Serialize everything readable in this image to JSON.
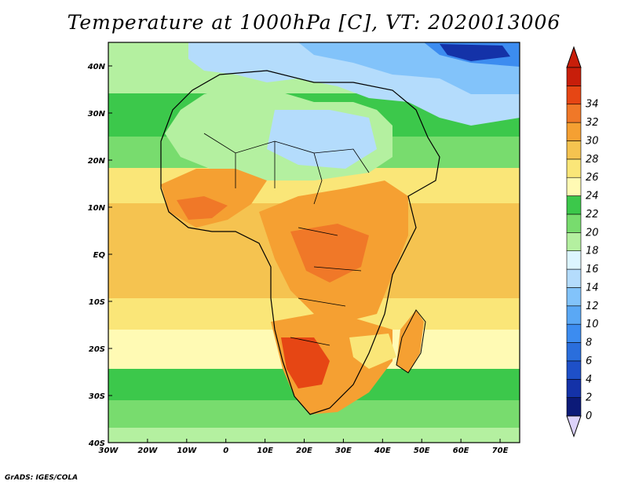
{
  "title": "Temperature at 1000hPa [C], VT: 2020013006",
  "credit": "GrADS: IGES/COLA",
  "map": {
    "lon_range": [
      -30,
      75
    ],
    "lat_range": [
      -40,
      45
    ],
    "lon_ticks": [
      "30W",
      "20W",
      "10W",
      "0",
      "10E",
      "20E",
      "30E",
      "40E",
      "50E",
      "60E",
      "70E"
    ],
    "lat_ticks": [
      "40N",
      "30N",
      "20N",
      "10N",
      "EQ",
      "10S",
      "20S",
      "30S",
      "40S"
    ],
    "variable": "temperature",
    "level": "1000hPa",
    "units": "C"
  },
  "colorbar": {
    "levels": [
      0,
      2,
      4,
      6,
      8,
      10,
      12,
      14,
      16,
      18,
      20,
      22,
      24,
      26,
      28,
      30,
      32,
      34
    ],
    "colors": [
      "#0c1a78",
      "#1432a8",
      "#1e50c8",
      "#2a6edc",
      "#3c8cf0",
      "#5aa8f5",
      "#82c3fa",
      "#b4dcfc",
      "#dcf5ff",
      "#b4f0a0",
      "#78dc6e",
      "#3cc84b",
      "#fffab4",
      "#fae678",
      "#f5c350",
      "#f5a032",
      "#f07828",
      "#e64614",
      "#c81e0a"
    ],
    "under_color": "#dcd2fa",
    "over_color": "#c81e0a"
  }
}
